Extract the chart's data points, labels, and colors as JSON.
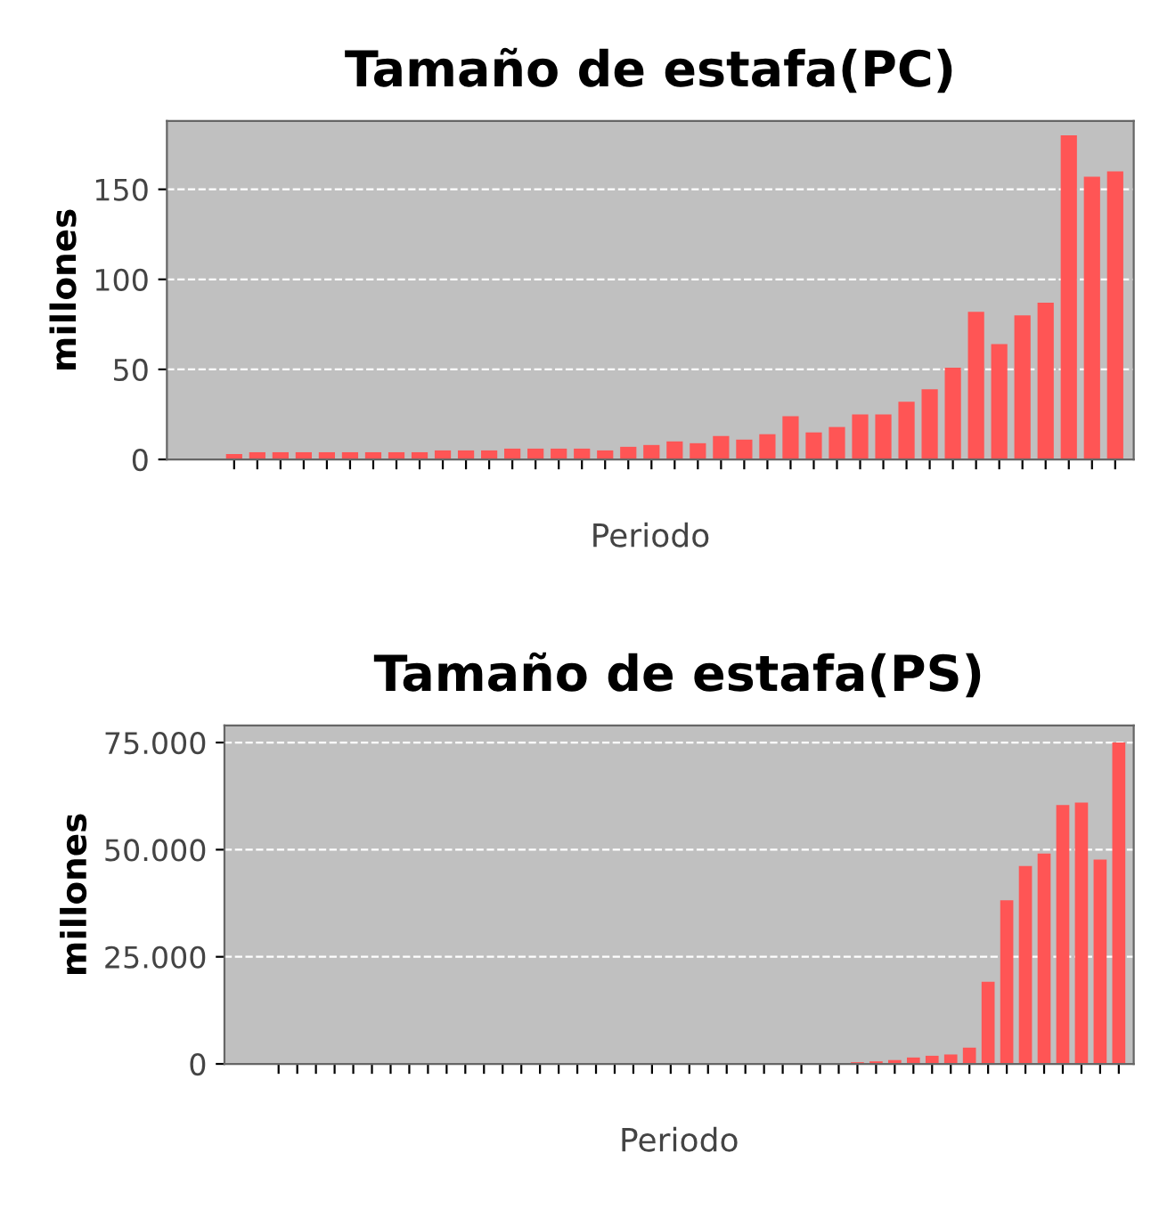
{
  "chart_data": [
    {
      "type": "bar",
      "title": "Tamaño de estafa(PC)",
      "xlabel": "Periodo",
      "ylabel": "millones",
      "categories": [
        null,
        null,
        null,
        null,
        null,
        null,
        null,
        null,
        null,
        null,
        null,
        null,
        null,
        null,
        null,
        null,
        null,
        null,
        null,
        null,
        null,
        null,
        null,
        null,
        null,
        null,
        null,
        null,
        null,
        null,
        null,
        null,
        null,
        null,
        null,
        null,
        null,
        null,
        null
      ],
      "series": [
        {
          "color": "#ff5555",
          "values": [
            3,
            4,
            4,
            4,
            4,
            4,
            4,
            4,
            4,
            5,
            5,
            5,
            6,
            6,
            6,
            6,
            5,
            7,
            8,
            10,
            9,
            13,
            11,
            14,
            24,
            15,
            18,
            25,
            25,
            32,
            39,
            51,
            82,
            64,
            80,
            87,
            180,
            157,
            160
          ]
        }
      ],
      "ylim": [
        0,
        188
      ],
      "yticks": [
        0,
        50,
        100,
        150
      ],
      "grid": "y"
    },
    {
      "type": "bar",
      "title": "Tamaño de estafa(PS)",
      "xlabel": "Periodo",
      "ylabel": "millones",
      "categories": [
        null,
        null,
        null,
        null,
        null,
        null,
        null,
        null,
        null,
        null,
        null,
        null,
        null,
        null,
        null,
        null,
        null,
        null,
        null,
        null,
        null,
        null,
        null,
        null,
        null,
        null,
        null,
        null,
        null,
        null,
        null,
        null,
        null,
        null,
        null,
        null,
        null,
        null,
        null,
        null,
        null,
        null,
        null,
        null,
        null,
        null
      ],
      "series": [
        {
          "color": "#ff5555",
          "values": [
            0,
            0,
            0,
            0,
            0,
            0,
            0,
            0,
            0,
            0,
            0,
            0,
            0,
            0,
            0,
            0,
            0,
            0,
            0,
            0,
            0,
            0,
            0,
            0,
            0,
            0,
            0,
            0,
            0,
            0,
            0,
            400,
            600,
            900,
            1500,
            1900,
            2200,
            3800,
            19200,
            38200,
            46200,
            49100,
            60400,
            61000,
            47700,
            75000
          ]
        }
      ],
      "ylim": [
        0,
        79000
      ],
      "yticks": [
        0,
        {
          "value": 25000,
          "label": "25.000"
        },
        {
          "value": 50000,
          "label": "50.000"
        },
        {
          "value": 75000,
          "label": "75.000"
        }
      ],
      "grid": "y"
    }
  ]
}
